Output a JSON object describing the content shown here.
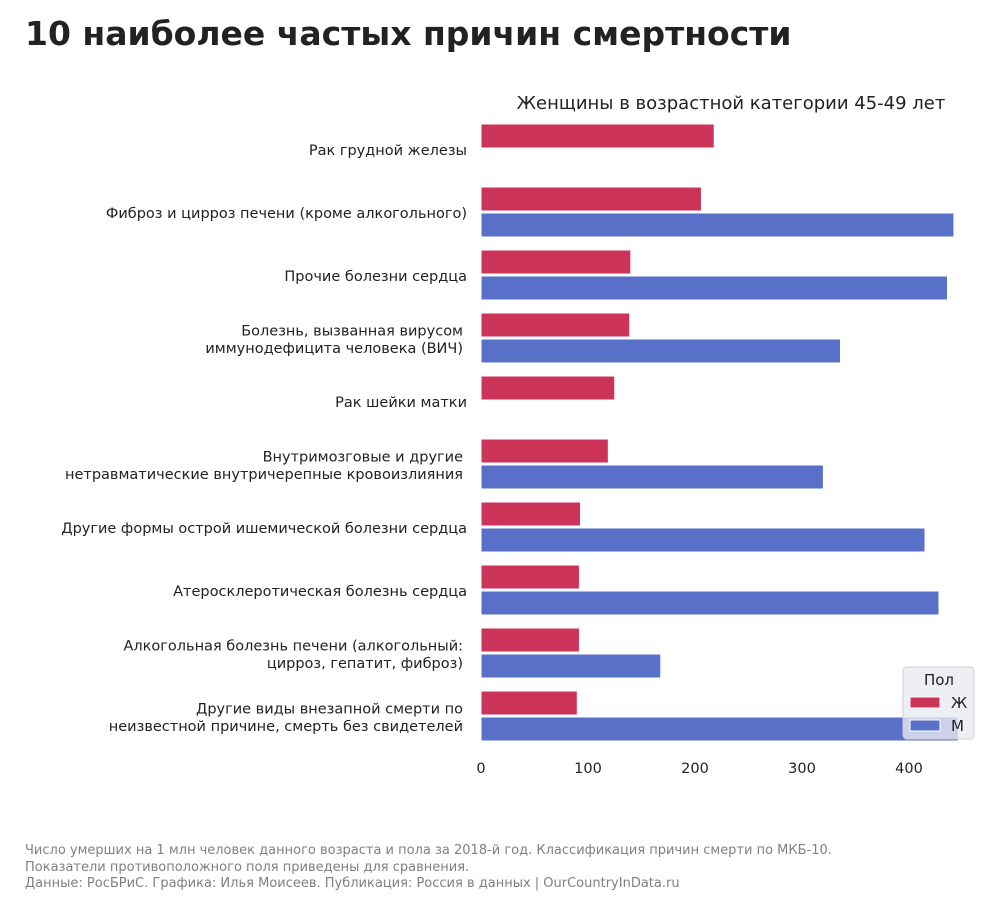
{
  "title": "10 наиболее частых причин смертности",
  "footer": [
    "Число умерших на 1 млн человек данного возраста и пола за 2018-й год. Классификация причин смерти по МКБ-10.",
    "Показатели противоположного поля приведены для сравнения.",
    "Данные: РосБРиС. Графика: Илья Моисеев. Публикация: Россия в данных | OurCountryInData.ru"
  ],
  "chart_data": {
    "type": "bar",
    "orientation": "horizontal",
    "title": "Женщины в возрастной категории 45-49 лет",
    "categories": [
      [
        "Рак грудной железы"
      ],
      [
        "Фиброз и цирроз печени (кроме алкогольного)"
      ],
      [
        "Прочие болезни сердца"
      ],
      [
        "Болезнь, вызванная вирусом",
        "иммунодефицита человека (ВИЧ)"
      ],
      [
        "Рак шейки матки"
      ],
      [
        "Внутримозговые и другие",
        "нетравматические внутричерепные кровоизлияния"
      ],
      [
        "Другие формы острой ишемической болезни сердца"
      ],
      [
        "Атеросклеротическая болезнь сердца"
      ],
      [
        "Алкогольная болезнь печени (алкогольный:",
        "цирроз, гепатит, фиброз)"
      ],
      [
        "Другие виды внезапной смерти по",
        "неизвестной причине, смерть без свидетелей"
      ]
    ],
    "series": [
      {
        "name": "Ж",
        "color": "#cc3358",
        "values": [
          218,
          206,
          140,
          139,
          125,
          119,
          93,
          92,
          92,
          90
        ]
      },
      {
        "name": "М",
        "color": "#5870c8",
        "values": [
          null,
          442,
          436,
          336,
          null,
          320,
          415,
          428,
          168,
          446
        ]
      }
    ],
    "xlim": [
      0,
      460
    ],
    "xticks": [
      0,
      100,
      200,
      300,
      400
    ],
    "grid": false,
    "legend": {
      "title": "Пол",
      "position": "bottom-right"
    }
  }
}
